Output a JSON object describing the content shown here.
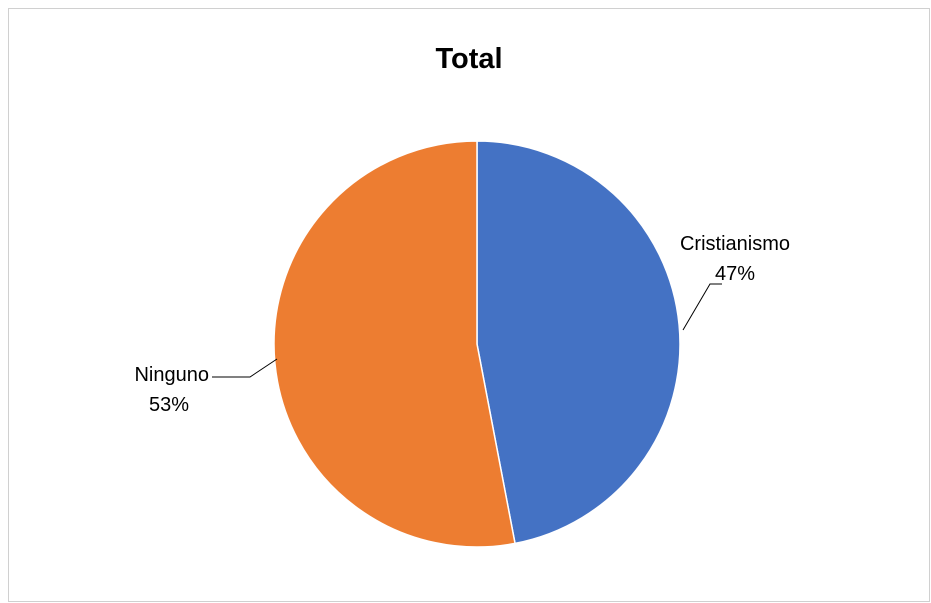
{
  "chart_data": {
    "type": "pie",
    "title": "Total",
    "categories": [
      "Cristianismo",
      "Ninguno"
    ],
    "values": [
      47,
      53
    ],
    "percent_labels": [
      "47%",
      "53%"
    ],
    "colors": [
      "#4472C4",
      "#ED7D31"
    ],
    "legend": "none",
    "start_angle": "12 o'clock",
    "direction": "clockwise"
  }
}
